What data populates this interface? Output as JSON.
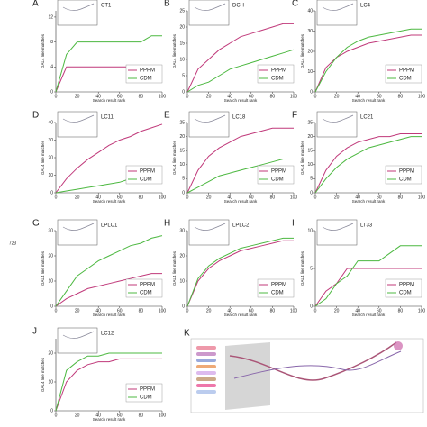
{
  "page_number": "723",
  "image_panel": {
    "letter": "K"
  },
  "chart_data": [
    {
      "type": "line",
      "letter": "A",
      "title": "CT1",
      "ylabel": "GAL4 line matches",
      "xlabel": "Search result rank",
      "x": [
        0,
        10,
        20,
        30,
        40,
        50,
        60,
        70,
        80,
        90,
        100
      ],
      "xlim": [
        0,
        100
      ],
      "xticks": [
        0,
        20,
        40,
        60,
        80,
        100
      ],
      "ylim": [
        0,
        13
      ],
      "yticks": [
        0,
        4,
        8,
        12
      ],
      "series": [
        {
          "name": "PPPM",
          "color": "#c0397a",
          "values": [
            0,
            4,
            4,
            4,
            4,
            4,
            4,
            4,
            4,
            4,
            4
          ]
        },
        {
          "name": "CDM",
          "color": "#4cb840",
          "values": [
            0,
            6,
            8,
            8,
            8,
            8,
            8,
            8,
            8,
            9,
            9
          ]
        }
      ]
    },
    {
      "type": "line",
      "letter": "B",
      "title": "DCH",
      "ylabel": "GAL4 line matches",
      "xlabel": "Search result rank",
      "x": [
        0,
        10,
        20,
        30,
        40,
        50,
        60,
        70,
        80,
        90,
        100
      ],
      "xlim": [
        0,
        100
      ],
      "xticks": [
        0,
        20,
        40,
        60,
        80,
        100
      ],
      "ylim": [
        0,
        25
      ],
      "yticks": [
        0,
        5,
        10,
        15,
        20,
        25
      ],
      "series": [
        {
          "name": "PPPM",
          "color": "#c0397a",
          "values": [
            0,
            7,
            10,
            13,
            15,
            17,
            18,
            19,
            20,
            21,
            21
          ]
        },
        {
          "name": "CDM",
          "color": "#4cb840",
          "values": [
            0,
            2,
            3,
            5,
            7,
            8,
            9,
            10,
            11,
            12,
            13
          ]
        }
      ]
    },
    {
      "type": "line",
      "letter": "C",
      "title": "LC4",
      "ylabel": "GAL4 line matches",
      "xlabel": "Search result rank",
      "x": [
        0,
        10,
        20,
        30,
        40,
        50,
        60,
        70,
        80,
        90,
        100
      ],
      "xlim": [
        0,
        100
      ],
      "xticks": [
        0,
        20,
        40,
        60,
        80,
        100
      ],
      "ylim": [
        0,
        40
      ],
      "yticks": [
        0,
        10,
        20,
        30,
        40
      ],
      "series": [
        {
          "name": "PPPM",
          "color": "#c0397a",
          "values": [
            0,
            12,
            17,
            20,
            22,
            24,
            25,
            26,
            27,
            28,
            28
          ]
        },
        {
          "name": "CDM",
          "color": "#4cb840",
          "values": [
            0,
            10,
            17,
            22,
            25,
            27,
            28,
            29,
            30,
            31,
            31
          ]
        }
      ]
    },
    {
      "type": "line",
      "letter": "D",
      "title": "LC11",
      "ylabel": "GAL4 line matches",
      "xlabel": "Search result rank",
      "x": [
        0,
        10,
        20,
        30,
        40,
        50,
        60,
        70,
        80,
        90,
        100
      ],
      "xlim": [
        0,
        100
      ],
      "xticks": [
        0,
        20,
        40,
        60,
        80,
        100
      ],
      "ylim": [
        0,
        40
      ],
      "yticks": [
        0,
        10,
        20,
        30,
        40
      ],
      "series": [
        {
          "name": "PPPM",
          "color": "#c0397a",
          "values": [
            0,
            8,
            14,
            19,
            23,
            27,
            30,
            32,
            35,
            37,
            39
          ]
        },
        {
          "name": "CDM",
          "color": "#4cb840",
          "values": [
            0,
            1,
            2,
            3,
            4,
            5,
            6,
            8,
            9,
            10,
            10
          ]
        }
      ]
    },
    {
      "type": "line",
      "letter": "E",
      "title": "LC18",
      "ylabel": "GAL4 line matches",
      "xlabel": "Search result rank",
      "x": [
        0,
        10,
        20,
        30,
        40,
        50,
        60,
        70,
        80,
        90,
        100
      ],
      "xlim": [
        0,
        100
      ],
      "xticks": [
        0,
        20,
        40,
        60,
        80,
        100
      ],
      "ylim": [
        0,
        25
      ],
      "yticks": [
        0,
        5,
        10,
        15,
        20,
        25
      ],
      "series": [
        {
          "name": "PPPM",
          "color": "#c0397a",
          "values": [
            0,
            8,
            13,
            16,
            18,
            20,
            21,
            22,
            23,
            23,
            23
          ]
        },
        {
          "name": "CDM",
          "color": "#4cb840",
          "values": [
            0,
            2,
            4,
            6,
            7,
            8,
            9,
            10,
            11,
            12,
            12
          ]
        }
      ]
    },
    {
      "type": "line",
      "letter": "F",
      "title": "LC21",
      "ylabel": "GAL4 line matches",
      "xlabel": "Search result rank",
      "x": [
        0,
        10,
        20,
        30,
        40,
        50,
        60,
        70,
        80,
        90,
        100
      ],
      "xlim": [
        0,
        100
      ],
      "xticks": [
        0,
        20,
        40,
        60,
        80,
        100
      ],
      "ylim": [
        0,
        25
      ],
      "yticks": [
        0,
        5,
        10,
        15,
        20,
        25
      ],
      "series": [
        {
          "name": "PPPM",
          "color": "#c0397a",
          "values": [
            0,
            8,
            13,
            16,
            18,
            19,
            20,
            20,
            21,
            21,
            21
          ]
        },
        {
          "name": "CDM",
          "color": "#4cb840",
          "values": [
            0,
            5,
            9,
            12,
            14,
            16,
            17,
            18,
            19,
            20,
            20
          ]
        }
      ]
    },
    {
      "type": "line",
      "letter": "G",
      "title": "LPLC1",
      "ylabel": "GAL4 line matches",
      "xlabel": "Search result rank",
      "x": [
        0,
        10,
        20,
        30,
        40,
        50,
        60,
        70,
        80,
        90,
        100
      ],
      "xlim": [
        0,
        100
      ],
      "xticks": [
        0,
        20,
        40,
        60,
        80,
        100
      ],
      "ylim": [
        0,
        30
      ],
      "yticks": [
        0,
        10,
        20,
        30
      ],
      "series": [
        {
          "name": "PPPM",
          "color": "#c0397a",
          "values": [
            0,
            3,
            5,
            7,
            8,
            9,
            10,
            11,
            12,
            13,
            13
          ]
        },
        {
          "name": "CDM",
          "color": "#4cb840",
          "values": [
            0,
            6,
            12,
            15,
            18,
            20,
            22,
            24,
            25,
            27,
            28
          ]
        }
      ]
    },
    {
      "type": "line",
      "letter": "H",
      "title": "LPLC2",
      "ylabel": "GAL4 line matches",
      "xlabel": "Search result rank",
      "x": [
        0,
        10,
        20,
        30,
        40,
        50,
        60,
        70,
        80,
        90,
        100
      ],
      "xlim": [
        0,
        100
      ],
      "xticks": [
        0,
        20,
        40,
        60,
        80,
        100
      ],
      "ylim": [
        0,
        30
      ],
      "yticks": [
        0,
        10,
        20,
        30
      ],
      "series": [
        {
          "name": "PPPM",
          "color": "#c0397a",
          "values": [
            0,
            10,
            15,
            18,
            20,
            22,
            23,
            24,
            25,
            26,
            26
          ]
        },
        {
          "name": "CDM",
          "color": "#4cb840",
          "values": [
            0,
            11,
            16,
            19,
            21,
            23,
            24,
            25,
            26,
            27,
            27
          ]
        }
      ]
    },
    {
      "type": "line",
      "letter": "I",
      "title": "LT33",
      "ylabel": "GAL4 line matches",
      "xlabel": "Search result rank",
      "x": [
        0,
        10,
        20,
        30,
        40,
        50,
        60,
        70,
        80,
        90,
        100
      ],
      "xlim": [
        0,
        100
      ],
      "xticks": [
        0,
        20,
        40,
        60,
        80,
        100
      ],
      "ylim": [
        0,
        10
      ],
      "yticks": [
        0,
        5,
        10
      ],
      "series": [
        {
          "name": "PPPM",
          "color": "#c0397a",
          "values": [
            0,
            2,
            3,
            5,
            5,
            5,
            5,
            5,
            5,
            5,
            5
          ]
        },
        {
          "name": "CDM",
          "color": "#4cb840",
          "values": [
            0,
            1,
            3,
            4,
            6,
            6,
            6,
            7,
            8,
            8,
            8
          ]
        }
      ]
    },
    {
      "type": "line",
      "letter": "J",
      "title": "LC12",
      "ylabel": "GAL4 line matches",
      "xlabel": "Search result rank",
      "x": [
        0,
        10,
        20,
        30,
        40,
        50,
        60,
        70,
        80,
        90,
        100
      ],
      "xlim": [
        0,
        100
      ],
      "xticks": [
        0,
        20,
        40,
        60,
        80,
        100
      ],
      "ylim": [
        0,
        25
      ],
      "yticks": [
        0,
        10,
        20
      ],
      "series": [
        {
          "name": "PPPM",
          "color": "#c0397a",
          "values": [
            0,
            10,
            14,
            16,
            17,
            17,
            18,
            18,
            18,
            18,
            18
          ]
        },
        {
          "name": "CDM",
          "color": "#4cb840",
          "values": [
            0,
            14,
            17,
            19,
            19,
            20,
            20,
            20,
            20,
            20,
            20
          ]
        }
      ]
    }
  ]
}
